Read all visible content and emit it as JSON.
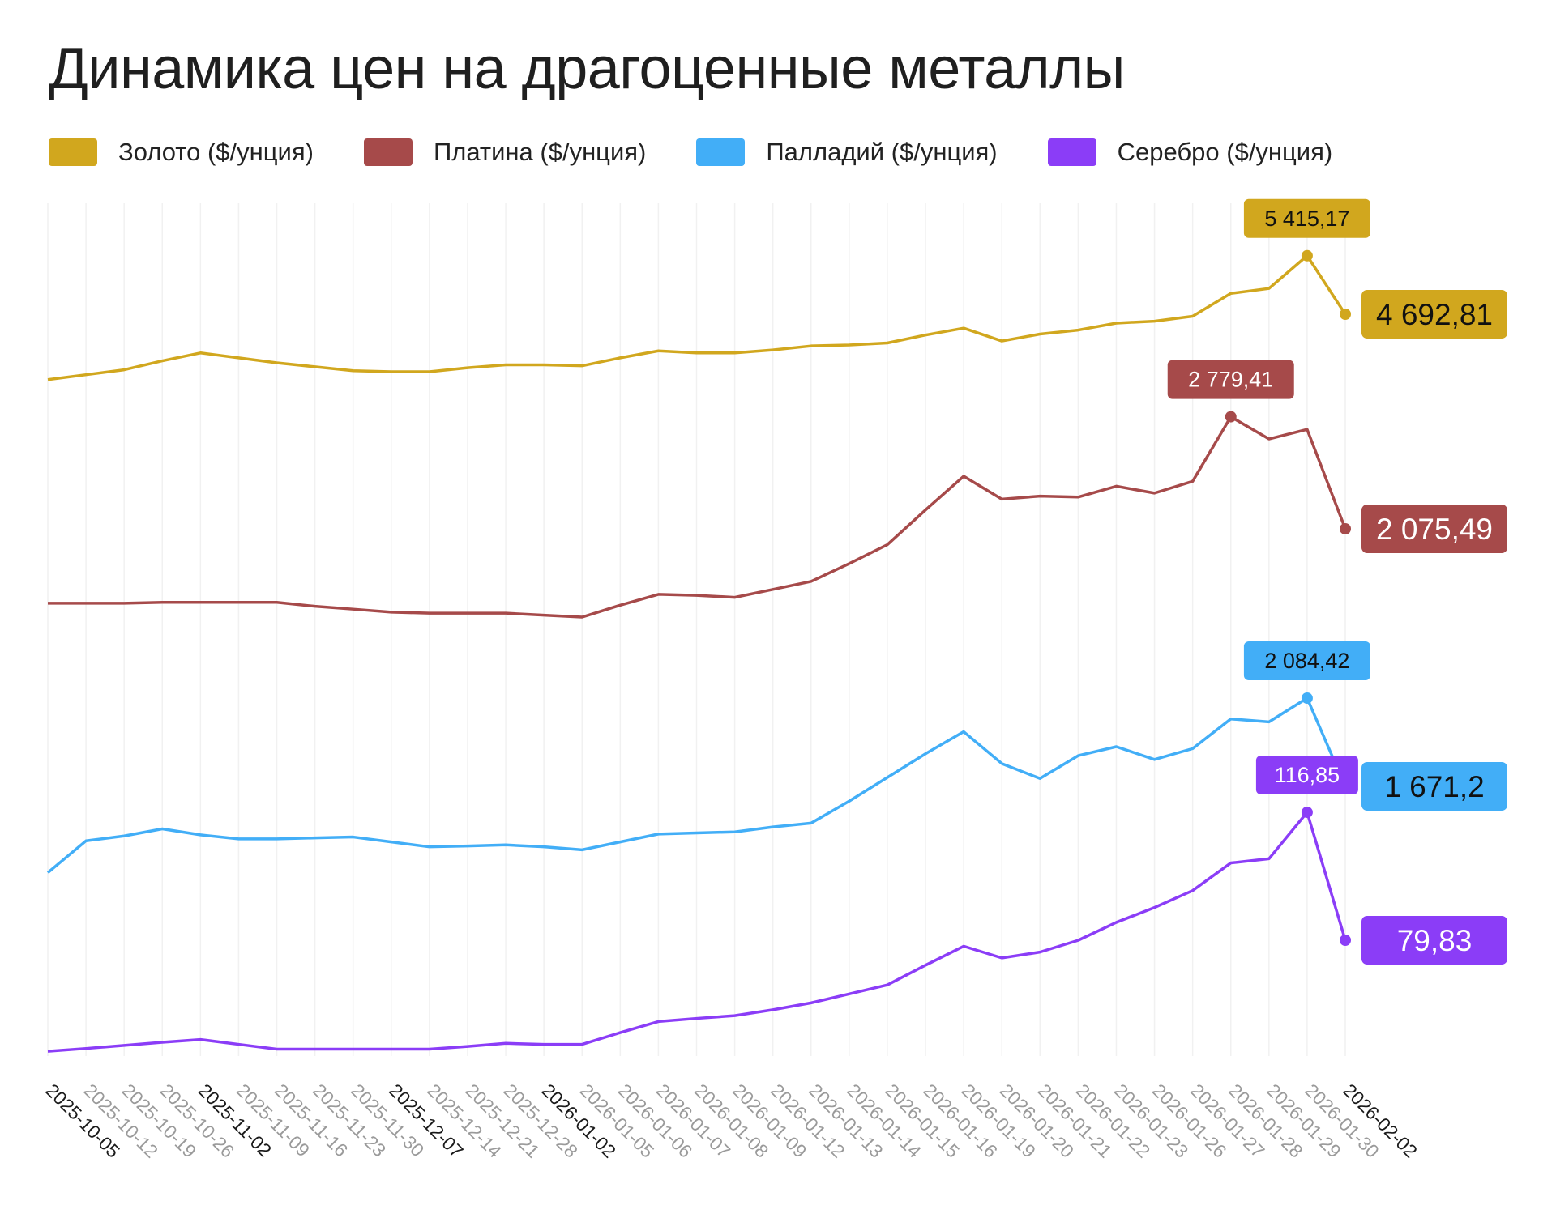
{
  "chart_data": {
    "type": "line",
    "title": "Динамика цен на драгоценные металлы",
    "xlabel": "",
    "ylabel": "",
    "grid": "vertical",
    "legend_placement": "top-left",
    "independent_y_scales": true,
    "categories": [
      "2025-10-05",
      "2025-10-12",
      "2025-10-19",
      "2025-10-26",
      "2025-11-02",
      "2025-11-09",
      "2025-11-16",
      "2025-11-23",
      "2025-11-30",
      "2025-12-07",
      "2025-12-14",
      "2025-12-21",
      "2025-12-28",
      "2026-01-02",
      "2026-01-05",
      "2026-01-06",
      "2026-01-07",
      "2026-01-08",
      "2026-01-09",
      "2026-01-12",
      "2026-01-13",
      "2026-01-14",
      "2026-01-15",
      "2026-01-16",
      "2026-01-19",
      "2026-01-20",
      "2026-01-21",
      "2026-01-22",
      "2026-01-23",
      "2026-01-26",
      "2026-01-27",
      "2026-01-28",
      "2026-01-29",
      "2026-01-30",
      "2026-02-02"
    ],
    "highlighted_ticks": [
      "2025-10-05",
      "2025-11-02",
      "2025-12-07",
      "2026-01-02",
      "2026-02-02"
    ],
    "series": [
      {
        "name": "Золото ($/унция)",
        "color": "#d1a71e",
        "label_text_color": "#111111",
        "values": [
          3885,
          3946,
          4007,
          4117,
          4215,
          4154,
          4093,
          4044,
          3995,
          3983,
          3983,
          4032,
          4068,
          4068,
          4056,
          4154,
          4240,
          4215,
          4215,
          4252,
          4301,
          4313,
          4338,
          4436,
          4521,
          4362,
          4448,
          4497,
          4583,
          4607,
          4668,
          4950,
          5011,
          5415.17,
          4692.81
        ],
        "peak": {
          "value": 5415.17,
          "label": "5 415,17"
        },
        "last": {
          "value": 4692.81,
          "label": "4 692,81"
        }
      },
      {
        "name": "Платина ($/унция)",
        "color": "#a64a4a",
        "label_text_color": "#ffffff",
        "values": [
          1608,
          1608,
          1608,
          1614,
          1614,
          1614,
          1614,
          1589,
          1571,
          1552,
          1546,
          1546,
          1546,
          1533,
          1521,
          1596,
          1664,
          1658,
          1645,
          1695,
          1745,
          1857,
          1976,
          2194,
          2406,
          2262,
          2281,
          2275,
          2343,
          2300,
          2374,
          2779.41,
          2640,
          2700,
          2075.49
        ],
        "peak": {
          "value": 2779.41,
          "label": "2 779,41"
        },
        "last": {
          "value": 2075.49,
          "label": "2 075,49"
        }
      },
      {
        "name": "Палладий ($/унция)",
        "color": "#42aef7",
        "label_text_color": "#111111",
        "values": [
          1267,
          1416,
          1439,
          1472,
          1444,
          1425,
          1425,
          1430,
          1434,
          1411,
          1388,
          1392,
          1397,
          1388,
          1374,
          1411,
          1448,
          1453,
          1458,
          1481,
          1499,
          1602,
          1713,
          1824,
          1927,
          1778,
          1708,
          1815,
          1857,
          1797,
          1848,
          1987,
          1973,
          2084.42,
          1671.2
        ],
        "peak": {
          "value": 2084.42,
          "label": "2 084,42"
        },
        "last": {
          "value": 1671.2,
          "label": "1 671,2"
        }
      },
      {
        "name": "Серебро ($/унция)",
        "color": "#8b3df7",
        "label_text_color": "#ffffff",
        "values": [
          47.7,
          48.5,
          49.4,
          50.3,
          51.1,
          49.7,
          48.3,
          48.3,
          48.3,
          48.3,
          48.3,
          49.1,
          50.0,
          49.7,
          49.7,
          53.1,
          56.3,
          57.2,
          58.0,
          59.7,
          61.7,
          64.3,
          66.9,
          72.6,
          78.1,
          74.7,
          76.4,
          79.8,
          85.0,
          89.3,
          94.2,
          102.2,
          103.4,
          116.85,
          79.83
        ],
        "peak": {
          "value": 116.85,
          "label": "116,85"
        },
        "last": {
          "value": 79.83,
          "label": "79,83"
        }
      }
    ]
  }
}
